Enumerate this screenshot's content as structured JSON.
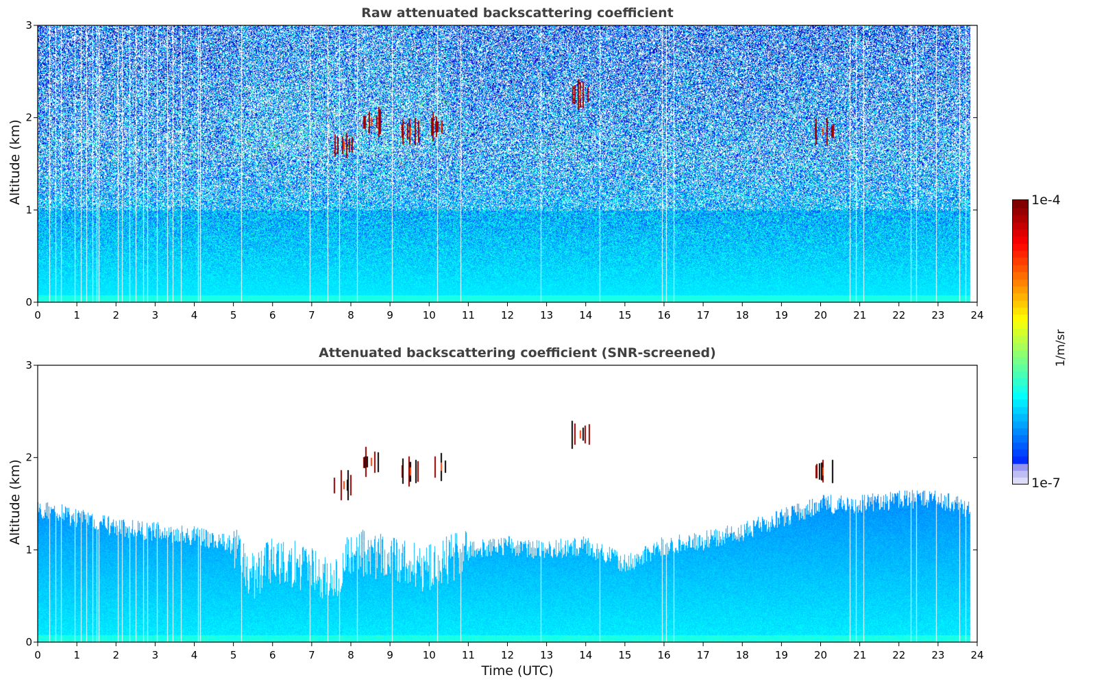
{
  "chart_data": [
    {
      "type": "heatmap",
      "title": "Raw attenuated backscattering coefficient",
      "xlabel": "",
      "ylabel": "Altitude (km)",
      "xlim": [
        0,
        24
      ],
      "ylim": [
        0,
        3
      ],
      "xticks": [
        "0",
        "1",
        "2",
        "3",
        "4",
        "5",
        "6",
        "7",
        "8",
        "9",
        "10",
        "11",
        "12",
        "13",
        "14",
        "15",
        "16",
        "17",
        "18",
        "19",
        "20",
        "21",
        "22",
        "23",
        "24"
      ],
      "yticks": [
        "0",
        "1",
        "2",
        "3"
      ],
      "grid": false,
      "description_features": {
        "boundary_layer_top_km": 1.5,
        "clouds": [
          {
            "time_utc": 7.8,
            "altitude_km": 1.7
          },
          {
            "time_utc": 8.5,
            "altitude_km": 1.95
          },
          {
            "time_utc": 9.5,
            "altitude_km": 1.85
          },
          {
            "time_utc": 10.3,
            "altitude_km": 1.9
          },
          {
            "time_utc": 13.85,
            "altitude_km": 2.25
          },
          {
            "time_utc": 20.05,
            "altitude_km": 1.85
          }
        ]
      }
    },
    {
      "type": "heatmap",
      "title": "Attenuated backscattering coefficient (SNR-screened)",
      "xlabel": "Time (UTC)",
      "ylabel": "Altitude (km)",
      "xlim": [
        0,
        24
      ],
      "ylim": [
        0,
        3
      ],
      "xticks": [
        "0",
        "1",
        "2",
        "3",
        "4",
        "5",
        "6",
        "7",
        "8",
        "9",
        "10",
        "11",
        "12",
        "13",
        "14",
        "15",
        "16",
        "17",
        "18",
        "19",
        "20",
        "21",
        "22",
        "23",
        "24"
      ],
      "yticks": [
        "0",
        "1",
        "2",
        "3"
      ],
      "grid": false,
      "screened_top_km": [
        {
          "t": 0.0,
          "h": 1.45
        },
        {
          "t": 1.0,
          "h": 1.35
        },
        {
          "t": 2.0,
          "h": 1.25
        },
        {
          "t": 3.0,
          "h": 1.2
        },
        {
          "t": 4.0,
          "h": 1.15
        },
        {
          "t": 5.0,
          "h": 1.05
        },
        {
          "t": 5.5,
          "h": 0.7
        },
        {
          "t": 6.0,
          "h": 0.9
        },
        {
          "t": 7.0,
          "h": 0.8
        },
        {
          "t": 7.5,
          "h": 0.65
        },
        {
          "t": 8.0,
          "h": 1.0
        },
        {
          "t": 9.0,
          "h": 0.9
        },
        {
          "t": 10.0,
          "h": 0.8
        },
        {
          "t": 11.0,
          "h": 1.0
        },
        {
          "t": 12.0,
          "h": 1.05
        },
        {
          "t": 13.0,
          "h": 1.0
        },
        {
          "t": 14.0,
          "h": 1.05
        },
        {
          "t": 15.0,
          "h": 0.85
        },
        {
          "t": 16.0,
          "h": 1.05
        },
        {
          "t": 17.0,
          "h": 1.1
        },
        {
          "t": 18.0,
          "h": 1.2
        },
        {
          "t": 19.0,
          "h": 1.35
        },
        {
          "t": 20.0,
          "h": 1.5
        },
        {
          "t": 21.0,
          "h": 1.5
        },
        {
          "t": 22.0,
          "h": 1.55
        },
        {
          "t": 23.0,
          "h": 1.55
        },
        {
          "t": 23.8,
          "h": 1.45
        }
      ]
    }
  ],
  "colorbar": {
    "max_label": "1e-4",
    "min_label": "1e-7",
    "unit": "1/m/sr",
    "colormap": "jet",
    "low_end_color": "#dcdcf8"
  },
  "colors": {
    "title": "#404040",
    "axis": "#000000",
    "background": "#ffffff"
  }
}
